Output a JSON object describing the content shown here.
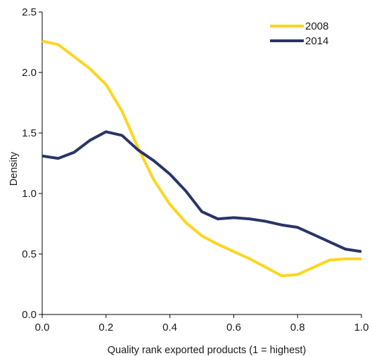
{
  "chart_data": {
    "type": "line",
    "title": "",
    "xlabel": "Quality rank exported products (1 = highest)",
    "ylabel": "Density",
    "xlim": [
      0,
      1.0
    ],
    "ylim": [
      0,
      2.5
    ],
    "x_ticks": [
      "0.0",
      "0.2",
      "0.4",
      "0.6",
      "0.8",
      "1.0"
    ],
    "y_ticks": [
      "0.0",
      "0.5",
      "1.0",
      "1.5",
      "2.0",
      "2.5"
    ],
    "legend_position": "top-right",
    "grid": false,
    "series": [
      {
        "name": "2008",
        "color": "#FFD51F",
        "x": [
          0.0,
          0.05,
          0.1,
          0.15,
          0.2,
          0.25,
          0.3,
          0.35,
          0.4,
          0.45,
          0.5,
          0.55,
          0.6,
          0.65,
          0.7,
          0.75,
          0.8,
          0.85,
          0.9,
          0.95,
          1.0
        ],
        "y": [
          2.26,
          2.23,
          2.13,
          2.03,
          1.9,
          1.68,
          1.38,
          1.11,
          0.91,
          0.76,
          0.65,
          0.58,
          0.52,
          0.46,
          0.39,
          0.32,
          0.33,
          0.39,
          0.45,
          0.46,
          0.46
        ]
      },
      {
        "name": "2014",
        "color": "#2A3468",
        "x": [
          0.0,
          0.05,
          0.1,
          0.15,
          0.2,
          0.25,
          0.3,
          0.35,
          0.4,
          0.45,
          0.5,
          0.55,
          0.6,
          0.65,
          0.7,
          0.75,
          0.8,
          0.85,
          0.9,
          0.95,
          1.0
        ],
        "y": [
          1.31,
          1.29,
          1.34,
          1.44,
          1.51,
          1.48,
          1.36,
          1.27,
          1.16,
          1.02,
          0.85,
          0.79,
          0.8,
          0.79,
          0.77,
          0.74,
          0.72,
          0.66,
          0.6,
          0.54,
          0.52
        ]
      }
    ]
  }
}
